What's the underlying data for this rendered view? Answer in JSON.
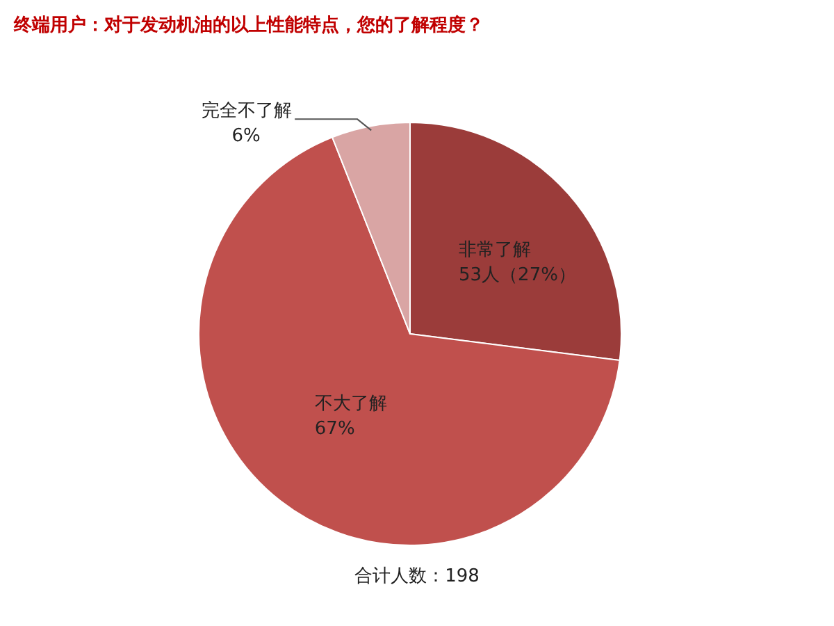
{
  "chart_data": {
    "type": "pie",
    "title": "终端用户：对于发动机油的以上性能特点，您的了解程度？",
    "categories": [
      "非常了解",
      "不大了解",
      "完全不了解"
    ],
    "values": [
      27,
      67,
      6
    ],
    "value_labels": [
      "53人（27%）",
      "67%",
      "6%"
    ],
    "colors": [
      "#9b3c3a",
      "#c0504d",
      "#d9a5a4"
    ],
    "annotations": [
      "合计人数：198"
    ]
  }
}
